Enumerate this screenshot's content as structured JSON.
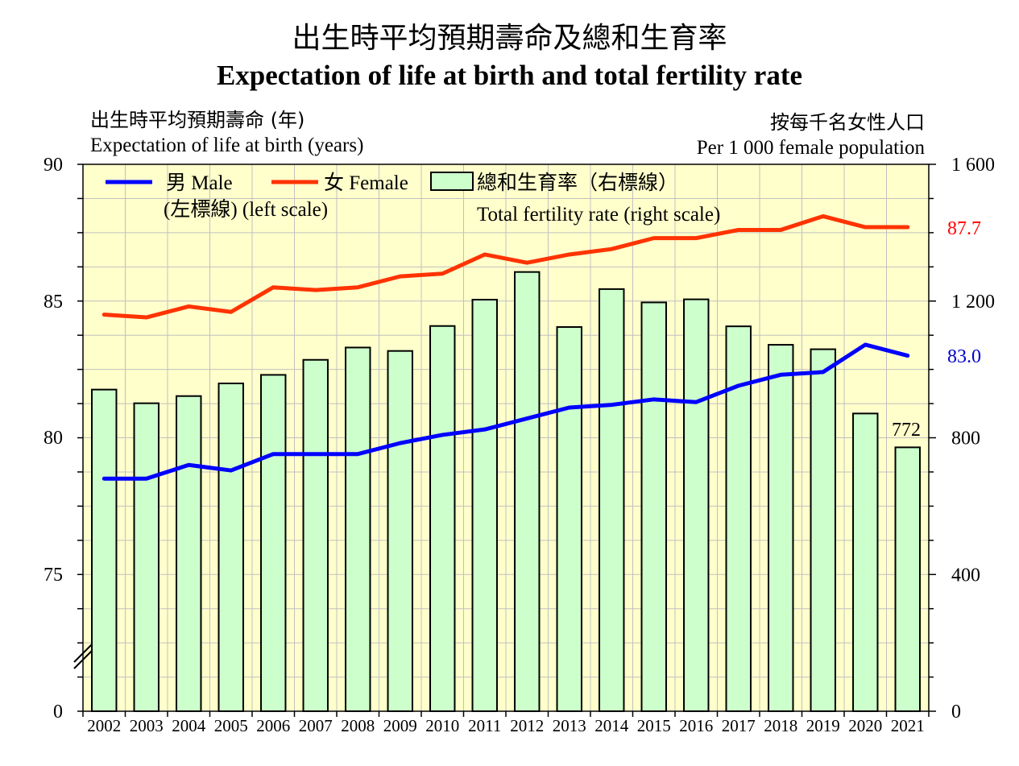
{
  "title_zh": "出生時平均預期壽命及總和生育率",
  "title_en": "Expectation of life at birth and total fertility rate",
  "left_axis": {
    "label_zh": "出生時平均預期壽命 (年)",
    "label_en": "Expectation of life at birth (years)",
    "ticks": [
      "90",
      "85",
      "80",
      "75",
      "0"
    ]
  },
  "right_axis": {
    "label_zh": "按每千名女性人口",
    "label_en": "Per 1 000 female population",
    "ticks": [
      "1 600",
      "1 200",
      "800",
      "400",
      "0"
    ]
  },
  "legend": {
    "male_zh": "男",
    "male_en": "Male",
    "male_scale": "(左標線) (left scale)",
    "female_zh": "女",
    "female_en": "Female",
    "tfr_zh": "總和生育率（右標線）",
    "tfr_en": "Total fertility rate (right scale)"
  },
  "annotations": {
    "female_last": "87.7",
    "male_last": "83.0",
    "tfr_last": "772"
  },
  "colors": {
    "plot_bg": "#ffffcc",
    "bar_fill": "#ccffcc",
    "male": "#0000ff",
    "female": "#ff3300",
    "female_label": "#ff0000",
    "male_label": "#0000cc",
    "grid": "#c0c0c0"
  },
  "chart_data": {
    "type": "bar+line",
    "categories": [
      "2002",
      "2003",
      "2004",
      "2005",
      "2006",
      "2007",
      "2008",
      "2009",
      "2010",
      "2011",
      "2012",
      "2013",
      "2014",
      "2015",
      "2016",
      "2017",
      "2018",
      "2019",
      "2020",
      "2021"
    ],
    "left_axis_range": [
      75,
      90
    ],
    "left_axis_break": "broken axis between 0 and 75",
    "right_axis_range": [
      0,
      1600
    ],
    "grid": true,
    "legend_position": "top-left",
    "series": [
      {
        "name": "男 Male",
        "axis": "left",
        "type": "line",
        "values": [
          78.5,
          78.5,
          79.0,
          78.8,
          79.4,
          79.4,
          79.4,
          79.8,
          80.1,
          80.3,
          80.7,
          81.1,
          81.2,
          81.4,
          81.3,
          81.9,
          82.3,
          82.4,
          83.4,
          83.0
        ]
      },
      {
        "name": "女 Female",
        "axis": "left",
        "type": "line",
        "values": [
          84.5,
          84.4,
          84.8,
          84.6,
          85.5,
          85.4,
          85.5,
          85.9,
          86.0,
          86.7,
          86.4,
          86.7,
          86.9,
          87.3,
          87.3,
          87.6,
          87.6,
          88.1,
          87.7,
          87.7
        ]
      },
      {
        "name": "總和生育率 Total fertility rate",
        "axis": "right",
        "type": "bar",
        "values": [
          941,
          901,
          922,
          959,
          984,
          1028,
          1064,
          1054,
          1127,
          1204,
          1285,
          1124,
          1235,
          1196,
          1205,
          1126,
          1072,
          1059,
          871,
          772
        ]
      }
    ]
  }
}
